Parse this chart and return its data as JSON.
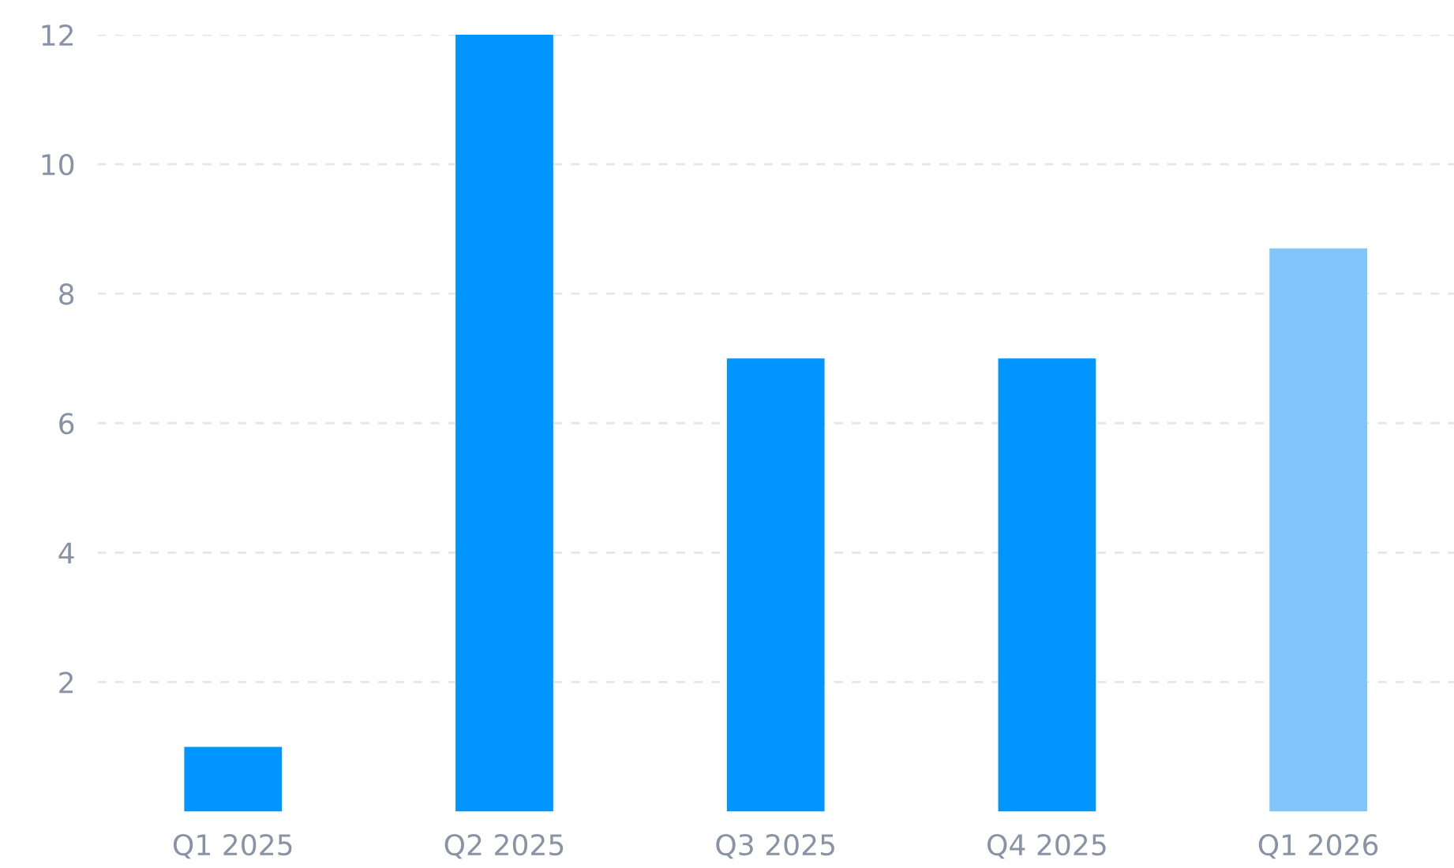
{
  "chart_data": {
    "type": "bar",
    "categories": [
      "Q1 2025",
      "Q2 2025",
      "Q3 2025",
      "Q4 2025",
      "Q1 2026"
    ],
    "values": [
      1,
      12,
      7,
      7,
      8.7
    ],
    "colors": [
      "#0095ff",
      "#0095ff",
      "#0095ff",
      "#0095ff",
      "#80c6fb"
    ],
    "ylim": [
      0,
      12
    ],
    "yticks": [
      2,
      4,
      6,
      8,
      10,
      12
    ],
    "grid": "y",
    "legend": false
  }
}
